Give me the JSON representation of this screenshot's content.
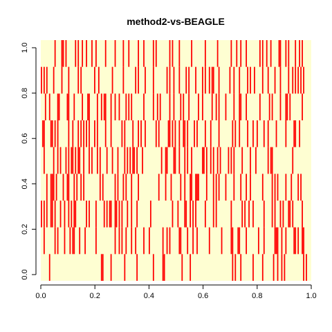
{
  "chart_data": {
    "type": "heatmap",
    "title": "method2-vs-BEAGLE",
    "xlabel": "",
    "ylabel": "",
    "xlim": [
      0,
      1
    ],
    "ylim": [
      0,
      1
    ],
    "xticks": [
      "0.0",
      "0.2",
      "0.4",
      "0.6",
      "0.8",
      "1.0"
    ],
    "yticks": [
      "0.0",
      "0.2",
      "0.4",
      "0.6",
      "0.8",
      "1.0"
    ],
    "grid": false,
    "legend": "none",
    "colors": {
      "background": "#fefed2",
      "mark": "#ff0000"
    },
    "rows": 9,
    "columns": 200,
    "cells": [
      "......#.....................................##.....#.........#........#...........#......##............#.....#..............................#.#...#........#......#.......#..#..#.#.............#.#...",
      "..#.......#.#....#...#.##...#...#.......#.............#..#.#..#...#..#.....#...#.........#..#.#......##....#...#..#........#........#......##...##....#........#...#.......###..#..#.....##.#..##",
      "#.#.#..##.#...#..#..#.#.##.......#.#....#.....#.#.##..##.#.#...#..#...#.........#...............#...#....##..#.#.#......#.....#.#..........#.......#.#..#..#.......#.....#.#...#.#...##.#......#",
      "....#..###.#....#..##...#.#..#.#...........#.#........#.#...#.#...#....#..............#....#...#......#..#...##..###.....#....#.#.#....#.....#....#...#..#........#......#.#.#.....#...#....#.#.",
      "..#......#..#.#...#.#.##.#.##..#...#.#...#.#....#...#...#....#.#.#.##.#...#.............#..##....##..#...#.#..#.......##.#..#.#..#.#.....#.#.#.....#.....#...#........#.##..............#......",
      ".##....##.#.#.......#..#...#.#.#.#.#...#.#.....#...#.......#.#.....#...#.#..#.......#.#......##.#.#..#..##.#....#.#.....#...#.....#.........#.#..#.....#...#..#....#..#.....#......#.....##..#...",
      "...#..#.....##.....##...#.....#...##.....#..#.##...#..#..#....#.#.#........#......#..#.#......#..#....#.#...#......#..#......#..#.#....#.....#...##...#.........#......#.#.....#...##.#........#",
      "#.#.#....#.....#....#......#.#.........#..#.........#.......#........#.#....#.....#.........#.#..#...#....#.#....#....#.#..#.##...#.......#..#...#.....#.#..#.....#...#....#...#.....#..#.#.#.#.#",
      "..........#....##.#......#.#..#..#...#..#......#......#.....#...#......#...#......#.#.........#.#....#........#.........#........#.........#...#..#...#.........#.#..#..#.....##...#.#....#..#.#."
    ]
  }
}
